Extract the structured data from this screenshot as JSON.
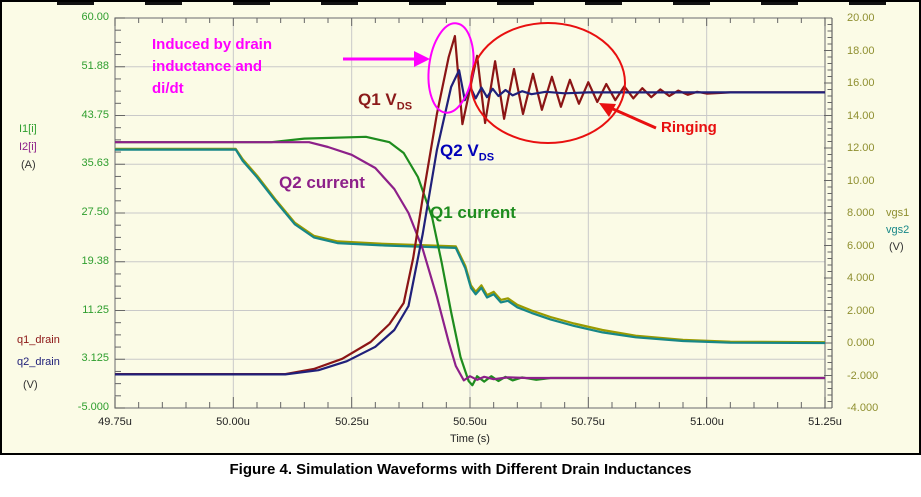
{
  "figure": {
    "caption": "Figure 4. Simulation Waveforms with Different Drain Inductances"
  },
  "colors": {
    "background": "#fbfbe6",
    "grid": "#c9c9c9",
    "frame": "#8a8a8a",
    "tick": "#666666",
    "magenta": "#ff00ff",
    "red": "#e81010",
    "dark_red_text": "#8b1a1a",
    "blue_text": "#0000b8",
    "purple": "#8d2089",
    "green": "#1e8c1e",
    "olive": "#9a9a00",
    "teal": "#178787",
    "brick": "#8b1515",
    "navy": "#20207a",
    "axis_green": "#2e9e2e",
    "axis_olive": "#8f8f30",
    "unit_text": "#333333"
  },
  "left_axis": {
    "ticks": [
      {
        "label": "60.00",
        "v": 60
      },
      {
        "label": "51.88",
        "v": 51.875
      },
      {
        "label": "43.75",
        "v": 43.75
      },
      {
        "label": "35.63",
        "v": 35.625
      },
      {
        "label": "27.50",
        "v": 27.5
      },
      {
        "label": "19.38",
        "v": 19.375
      },
      {
        "label": "11.25",
        "v": 11.25
      },
      {
        "label": "3.125",
        "v": 3.125
      },
      {
        "label": "-5.000",
        "v": -5
      }
    ],
    "labels": {
      "i1": "I1[i]",
      "i2": "I2[i]",
      "unit_a": "(A)",
      "q1": "q1_drain",
      "q2": "q2_drain",
      "unit_v": "(V)"
    }
  },
  "right_axis": {
    "ticks": [
      {
        "label": "20.00",
        "v": 20
      },
      {
        "label": "18.00",
        "v": 18
      },
      {
        "label": "16.00",
        "v": 16
      },
      {
        "label": "14.00",
        "v": 14
      },
      {
        "label": "12.00",
        "v": 12
      },
      {
        "label": "10.00",
        "v": 10
      },
      {
        "label": "8.000",
        "v": 8
      },
      {
        "label": "6.000",
        "v": 6
      },
      {
        "label": "4.000",
        "v": 4
      },
      {
        "label": "2.000",
        "v": 2
      },
      {
        "label": "0.000",
        "v": 0
      },
      {
        "label": "-2.000",
        "v": -2
      },
      {
        "label": "-4.000",
        "v": -4
      }
    ],
    "labels": {
      "vgs1": "vgs1",
      "vgs2": "vgs2",
      "unit_v": "(V)"
    }
  },
  "x_axis": {
    "ticks": [
      {
        "label": "49.75u",
        "t": 49.75
      },
      {
        "label": "50.00u",
        "t": 50.0
      },
      {
        "label": "50.25u",
        "t": 50.25
      },
      {
        "label": "50.50u",
        "t": 50.5
      },
      {
        "label": "50.75u",
        "t": 50.75
      },
      {
        "label": "51.00u",
        "t": 51.0
      },
      {
        "label": "51.25u",
        "t": 51.25
      }
    ],
    "label": "Time (s)"
  },
  "annotations": {
    "induced": {
      "lines": [
        "Induced by drain",
        "inductance and",
        "di/dt"
      ]
    },
    "q1_vds": {
      "text": "Q1 V",
      "sub": "DS"
    },
    "q2_vds": {
      "text": "Q2 V",
      "sub": "DS"
    },
    "q2_current": {
      "text": "Q2 current"
    },
    "q1_current": {
      "text": "Q1 current"
    },
    "ringing": {
      "text": "Ringing"
    }
  },
  "chart_data": {
    "type": "line",
    "xlabel": "Time (s)",
    "xlim_us": [
      49.75,
      51.25
    ],
    "grid": true,
    "axes": {
      "left": {
        "lim": [
          -5,
          60
        ],
        "quantities": "drain currents I1,I2 (A) and drain voltages q1_drain,q2_drain (V)"
      },
      "right": {
        "lim": [
          -4,
          20
        ],
        "quantities": "gate voltages vgs1, vgs2 (V)"
      }
    },
    "series": [
      {
        "name": "vgs1",
        "axis": "right",
        "color": "#9a9a00",
        "points": [
          [
            49.75,
            11.95
          ],
          [
            50.005,
            11.95
          ],
          [
            50.02,
            11.3
          ],
          [
            50.05,
            10.3
          ],
          [
            50.09,
            8.8
          ],
          [
            50.13,
            7.4
          ],
          [
            50.17,
            6.6
          ],
          [
            50.22,
            6.25
          ],
          [
            50.32,
            6.1
          ],
          [
            50.47,
            5.95
          ],
          [
            50.49,
            4.75
          ],
          [
            50.502,
            3.55
          ],
          [
            50.512,
            3.15
          ],
          [
            50.524,
            3.55
          ],
          [
            50.536,
            2.95
          ],
          [
            50.55,
            3.15
          ],
          [
            50.565,
            2.65
          ],
          [
            50.58,
            2.75
          ],
          [
            50.6,
            2.35
          ],
          [
            50.63,
            2.0
          ],
          [
            50.67,
            1.6
          ],
          [
            50.72,
            1.2
          ],
          [
            50.78,
            0.8
          ],
          [
            50.85,
            0.45
          ],
          [
            50.95,
            0.2
          ],
          [
            51.05,
            0.08
          ],
          [
            51.25,
            0.05
          ]
        ]
      },
      {
        "name": "vgs2",
        "axis": "right",
        "color": "#178787",
        "points": [
          [
            49.75,
            11.9
          ],
          [
            50.005,
            11.9
          ],
          [
            50.02,
            11.2
          ],
          [
            50.05,
            10.2
          ],
          [
            50.09,
            8.7
          ],
          [
            50.13,
            7.3
          ],
          [
            50.17,
            6.5
          ],
          [
            50.22,
            6.15
          ],
          [
            50.32,
            6.0
          ],
          [
            50.47,
            5.85
          ],
          [
            50.49,
            4.6
          ],
          [
            50.502,
            3.4
          ],
          [
            50.512,
            3.0
          ],
          [
            50.524,
            3.4
          ],
          [
            50.536,
            2.8
          ],
          [
            50.55,
            3.0
          ],
          [
            50.565,
            2.5
          ],
          [
            50.58,
            2.6
          ],
          [
            50.6,
            2.2
          ],
          [
            50.63,
            1.85
          ],
          [
            50.67,
            1.45
          ],
          [
            50.72,
            1.05
          ],
          [
            50.78,
            0.65
          ],
          [
            50.85,
            0.35
          ],
          [
            50.95,
            0.12
          ],
          [
            51.05,
            0.02
          ],
          [
            51.25,
            0.0
          ]
        ]
      },
      {
        "name": "I1[i]",
        "axis": "left",
        "color": "#1e8c1e",
        "points": [
          [
            49.75,
            39.3
          ],
          [
            50.08,
            39.3
          ],
          [
            50.15,
            39.9
          ],
          [
            50.28,
            40.2
          ],
          [
            50.33,
            39.3
          ],
          [
            50.36,
            37.5
          ],
          [
            50.39,
            33.5
          ],
          [
            50.42,
            26.8
          ],
          [
            50.44,
            19.3
          ],
          [
            50.46,
            11.0
          ],
          [
            50.48,
            3.5
          ],
          [
            50.497,
            -0.5
          ],
          [
            50.505,
            -1.2
          ],
          [
            50.515,
            0.3
          ],
          [
            50.53,
            -0.6
          ],
          [
            50.545,
            0.3
          ],
          [
            50.56,
            -0.5
          ],
          [
            50.575,
            0.2
          ],
          [
            50.59,
            -0.4
          ],
          [
            50.61,
            0.1
          ],
          [
            50.64,
            -0.3
          ],
          [
            50.67,
            0.0
          ],
          [
            51.25,
            0.0
          ]
        ]
      },
      {
        "name": "I2[i]",
        "axis": "left",
        "color": "#8d2089",
        "points": [
          [
            49.75,
            39.3
          ],
          [
            50.16,
            39.3
          ],
          [
            50.2,
            38.5
          ],
          [
            50.25,
            37.2
          ],
          [
            50.3,
            35.0
          ],
          [
            50.34,
            31.5
          ],
          [
            50.37,
            27.5
          ],
          [
            50.4,
            21.5
          ],
          [
            50.43,
            13.5
          ],
          [
            50.455,
            6.0
          ],
          [
            50.47,
            2.0
          ],
          [
            50.487,
            -0.4
          ],
          [
            50.5,
            0.3
          ],
          [
            50.515,
            -0.3
          ],
          [
            50.53,
            0.2
          ],
          [
            50.55,
            -0.2
          ],
          [
            50.58,
            0.1
          ],
          [
            50.62,
            0.0
          ],
          [
            51.25,
            0.0
          ]
        ]
      },
      {
        "name": "q1_drain",
        "axis": "left",
        "color": "#8b1515",
        "points": [
          [
            49.75,
            0.65
          ],
          [
            50.11,
            0.65
          ],
          [
            50.17,
            1.5
          ],
          [
            50.23,
            3.2
          ],
          [
            50.29,
            6.0
          ],
          [
            50.33,
            9.0
          ],
          [
            50.36,
            12.5
          ],
          [
            50.38,
            20
          ],
          [
            50.4,
            30
          ],
          [
            50.43,
            44
          ],
          [
            50.455,
            53.5
          ],
          [
            50.468,
            57.0
          ],
          [
            50.484,
            42.3
          ],
          [
            50.515,
            53.7
          ],
          [
            50.532,
            42.5
          ],
          [
            50.553,
            52.8
          ],
          [
            50.572,
            43.2
          ],
          [
            50.593,
            51.5
          ],
          [
            50.612,
            44.0
          ],
          [
            50.633,
            50.7
          ],
          [
            50.652,
            44.7
          ],
          [
            50.673,
            50.2
          ],
          [
            50.692,
            45.2
          ],
          [
            50.711,
            49.7
          ],
          [
            50.73,
            45.7
          ],
          [
            50.75,
            49.3
          ],
          [
            50.769,
            46.0
          ],
          [
            50.788,
            49.0
          ],
          [
            50.807,
            46.3
          ],
          [
            50.826,
            48.6
          ],
          [
            50.845,
            46.6
          ],
          [
            50.864,
            48.3
          ],
          [
            50.883,
            46.8
          ],
          [
            50.902,
            48.1
          ],
          [
            50.921,
            47.0
          ],
          [
            50.94,
            47.9
          ],
          [
            50.96,
            47.2
          ],
          [
            50.98,
            47.7
          ],
          [
            51.0,
            47.4
          ],
          [
            51.05,
            47.6
          ],
          [
            51.25,
            47.6
          ]
        ]
      },
      {
        "name": "q2_drain",
        "axis": "left",
        "color": "#20207a",
        "points": [
          [
            49.75,
            0.6
          ],
          [
            50.11,
            0.6
          ],
          [
            50.18,
            1.3
          ],
          [
            50.24,
            2.8
          ],
          [
            50.3,
            5.2
          ],
          [
            50.34,
            8.0
          ],
          [
            50.37,
            12
          ],
          [
            50.4,
            24
          ],
          [
            50.43,
            38
          ],
          [
            50.46,
            48.5
          ],
          [
            50.477,
            51.3
          ],
          [
            50.489,
            46.3
          ],
          [
            50.5,
            48.6
          ],
          [
            50.512,
            46.6
          ],
          [
            50.524,
            48.4
          ],
          [
            50.536,
            46.8
          ],
          [
            50.548,
            48.2
          ],
          [
            50.56,
            47.0
          ],
          [
            50.575,
            48.0
          ],
          [
            50.59,
            47.1
          ],
          [
            50.61,
            47.8
          ],
          [
            50.63,
            47.3
          ],
          [
            50.66,
            47.7
          ],
          [
            50.7,
            47.45
          ],
          [
            50.75,
            47.6
          ],
          [
            51.25,
            47.6
          ]
        ]
      }
    ]
  }
}
